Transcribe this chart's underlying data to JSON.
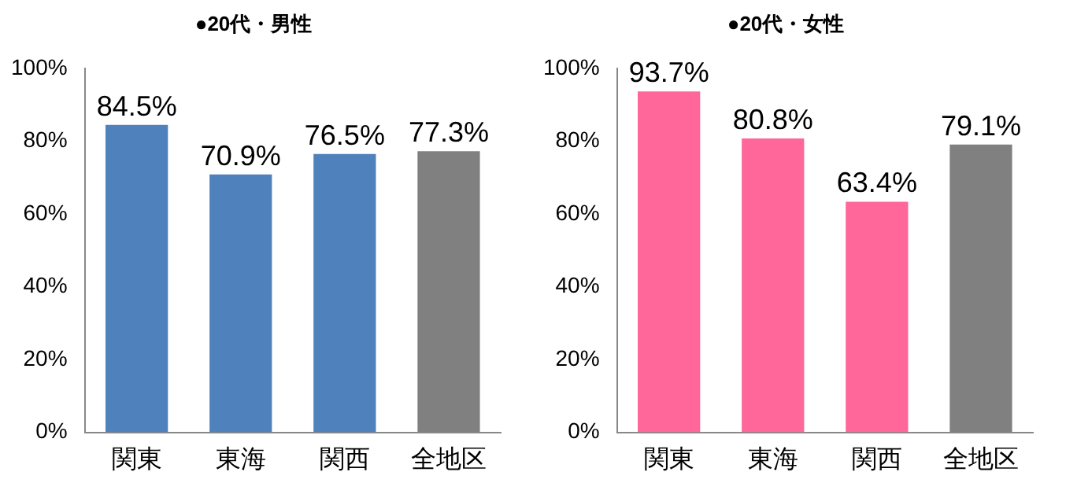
{
  "chart_data": [
    {
      "type": "bar",
      "title": "●20代・男性",
      "categories": [
        "関東",
        "東海",
        "関西",
        "全地区"
      ],
      "values": [
        84.5,
        70.9,
        76.5,
        77.3
      ],
      "colors": [
        "#4f81bd",
        "#4f81bd",
        "#4f81bd",
        "#808080"
      ],
      "value_labels": [
        "84.5%",
        "70.9%",
        "76.5%",
        "77.3%"
      ],
      "ylim": [
        0,
        100
      ],
      "yticks": [
        {
          "value": 0,
          "label": "0%"
        },
        {
          "value": 20,
          "label": "20%"
        },
        {
          "value": 40,
          "label": "40%"
        },
        {
          "value": 60,
          "label": "60%"
        },
        {
          "value": 80,
          "label": "80%"
        },
        {
          "value": 100,
          "label": "100%"
        }
      ],
      "grid": false,
      "legend": false
    },
    {
      "type": "bar",
      "title": "●20代・女性",
      "categories": [
        "関東",
        "東海",
        "関西",
        "全地区"
      ],
      "values": [
        93.7,
        80.8,
        63.4,
        79.1
      ],
      "colors": [
        "#ff6699",
        "#ff6699",
        "#ff6699",
        "#808080"
      ],
      "value_labels": [
        "93.7%",
        "80.8%",
        "63.4%",
        "79.1%"
      ],
      "ylim": [
        0,
        100
      ],
      "yticks": [
        {
          "value": 0,
          "label": "0%"
        },
        {
          "value": 20,
          "label": "20%"
        },
        {
          "value": 40,
          "label": "40%"
        },
        {
          "value": 60,
          "label": "60%"
        },
        {
          "value": 80,
          "label": "80%"
        },
        {
          "value": 100,
          "label": "100%"
        }
      ],
      "grid": false,
      "legend": false
    }
  ]
}
